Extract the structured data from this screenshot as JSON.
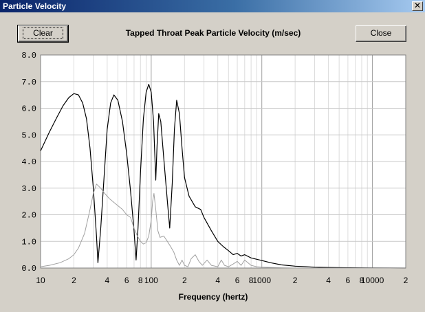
{
  "window": {
    "title": "Particle Velocity",
    "close_glyph": "✕",
    "close_icon": "close-icon"
  },
  "toolbar": {
    "clear_label": "Clear",
    "close_label": "Close"
  },
  "chart_data": {
    "type": "line",
    "title": "Tapped Throat Peak Particle Velocity (m/sec)",
    "xlabel": "Frequency (hertz)",
    "ylabel": "",
    "xscale": "log",
    "xlim": [
      10,
      20000
    ],
    "ylim": [
      0,
      8
    ],
    "grid": true,
    "background": "#ffffff",
    "ytick_labels": [
      "0.0",
      "1.0",
      "2.0",
      "3.0",
      "4.0",
      "5.0",
      "6.0",
      "7.0",
      "8.0"
    ],
    "xtick_labels": [
      {
        "x": 10,
        "label": "10"
      },
      {
        "x": 20,
        "label": "2"
      },
      {
        "x": 40,
        "label": "4"
      },
      {
        "x": 60,
        "label": "6"
      },
      {
        "x": 80,
        "label": "8"
      },
      {
        "x": 100,
        "label": "100"
      },
      {
        "x": 200,
        "label": "2"
      },
      {
        "x": 400,
        "label": "4"
      },
      {
        "x": 600,
        "label": "6"
      },
      {
        "x": 800,
        "label": "8"
      },
      {
        "x": 1000,
        "label": "1000"
      },
      {
        "x": 2000,
        "label": "2"
      },
      {
        "x": 4000,
        "label": "4"
      },
      {
        "x": 6000,
        "label": "6"
      },
      {
        "x": 8000,
        "label": "8"
      },
      {
        "x": 10000,
        "label": "10000"
      },
      {
        "x": 20000,
        "label": "2"
      }
    ],
    "series": [
      {
        "color": "#000000",
        "points": [
          [
            10,
            4.4
          ],
          [
            12,
            5.1
          ],
          [
            14,
            5.65
          ],
          [
            16,
            6.1
          ],
          [
            18,
            6.4
          ],
          [
            20,
            6.55
          ],
          [
            22,
            6.5
          ],
          [
            24,
            6.2
          ],
          [
            26,
            5.6
          ],
          [
            28,
            4.5
          ],
          [
            30,
            3.0
          ],
          [
            32,
            1.2
          ],
          [
            33,
            0.2
          ],
          [
            35,
            1.5
          ],
          [
            38,
            3.8
          ],
          [
            40,
            5.2
          ],
          [
            43,
            6.2
          ],
          [
            46,
            6.5
          ],
          [
            50,
            6.3
          ],
          [
            55,
            5.5
          ],
          [
            60,
            4.3
          ],
          [
            65,
            2.9
          ],
          [
            70,
            1.4
          ],
          [
            73,
            0.3
          ],
          [
            76,
            1.5
          ],
          [
            80,
            3.6
          ],
          [
            85,
            5.6
          ],
          [
            90,
            6.6
          ],
          [
            95,
            6.9
          ],
          [
            100,
            6.6
          ],
          [
            105,
            5.5
          ],
          [
            110,
            3.3
          ],
          [
            113,
            4.6
          ],
          [
            117,
            5.8
          ],
          [
            122,
            5.5
          ],
          [
            130,
            4.1
          ],
          [
            140,
            2.5
          ],
          [
            147,
            1.5
          ],
          [
            155,
            3.2
          ],
          [
            162,
            5.2
          ],
          [
            170,
            6.3
          ],
          [
            180,
            5.8
          ],
          [
            190,
            4.5
          ],
          [
            200,
            3.4
          ],
          [
            220,
            2.7
          ],
          [
            250,
            2.3
          ],
          [
            280,
            2.2
          ],
          [
            300,
            1.9
          ],
          [
            350,
            1.4
          ],
          [
            400,
            1.0
          ],
          [
            450,
            0.8
          ],
          [
            500,
            0.65
          ],
          [
            550,
            0.5
          ],
          [
            600,
            0.55
          ],
          [
            650,
            0.45
          ],
          [
            700,
            0.5
          ],
          [
            800,
            0.38
          ],
          [
            1000,
            0.28
          ],
          [
            1200,
            0.2
          ],
          [
            1500,
            0.12
          ],
          [
            2000,
            0.07
          ],
          [
            2500,
            0.05
          ],
          [
            3000,
            0.03
          ],
          [
            4000,
            0.02
          ],
          [
            6000,
            0.01
          ],
          [
            10000,
            0.005
          ],
          [
            20000,
            0.0
          ]
        ]
      },
      {
        "color": "#a0a0a0",
        "points": [
          [
            10,
            0.05
          ],
          [
            12,
            0.1
          ],
          [
            15,
            0.2
          ],
          [
            18,
            0.35
          ],
          [
            20,
            0.5
          ],
          [
            22,
            0.75
          ],
          [
            25,
            1.3
          ],
          [
            28,
            2.2
          ],
          [
            30,
            2.8
          ],
          [
            32,
            3.15
          ],
          [
            35,
            3.0
          ],
          [
            38,
            2.8
          ],
          [
            42,
            2.6
          ],
          [
            48,
            2.4
          ],
          [
            55,
            2.2
          ],
          [
            60,
            2.0
          ],
          [
            65,
            1.9
          ],
          [
            70,
            1.5
          ],
          [
            75,
            1.2
          ],
          [
            80,
            1.0
          ],
          [
            85,
            0.9
          ],
          [
            90,
            0.95
          ],
          [
            95,
            1.2
          ],
          [
            100,
            1.8
          ],
          [
            103,
            2.5
          ],
          [
            106,
            2.8
          ],
          [
            110,
            2.2
          ],
          [
            115,
            1.4
          ],
          [
            120,
            1.15
          ],
          [
            130,
            1.2
          ],
          [
            140,
            1.0
          ],
          [
            150,
            0.8
          ],
          [
            160,
            0.6
          ],
          [
            170,
            0.3
          ],
          [
            180,
            0.1
          ],
          [
            190,
            0.3
          ],
          [
            200,
            0.1
          ],
          [
            215,
            0.05
          ],
          [
            230,
            0.35
          ],
          [
            250,
            0.5
          ],
          [
            270,
            0.25
          ],
          [
            290,
            0.1
          ],
          [
            320,
            0.3
          ],
          [
            350,
            0.1
          ],
          [
            400,
            0.05
          ],
          [
            430,
            0.3
          ],
          [
            460,
            0.1
          ],
          [
            500,
            0.05
          ],
          [
            550,
            0.15
          ],
          [
            600,
            0.25
          ],
          [
            650,
            0.1
          ],
          [
            700,
            0.3
          ],
          [
            800,
            0.1
          ],
          [
            900,
            0.05
          ],
          [
            1000,
            0.03
          ],
          [
            1500,
            0.01
          ],
          [
            2000,
            0.0
          ],
          [
            20000,
            0.0
          ]
        ]
      }
    ]
  }
}
